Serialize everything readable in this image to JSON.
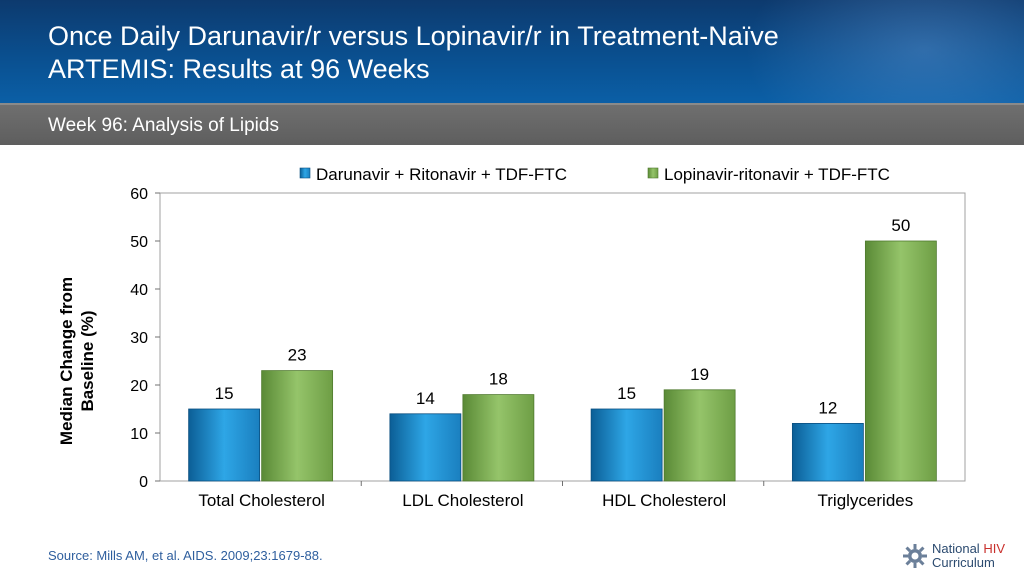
{
  "header": {
    "title_line1": "Once Daily Darunavir/r versus Lopinavir/r in Treatment-Naïve",
    "title_line2": "ARTEMIS: Results at 96 Weeks",
    "subtitle": "Week 96: Analysis of Lipids"
  },
  "chart_data": {
    "type": "bar",
    "title": "",
    "ylabel": "Median Change from Baseline (%)",
    "xlabel": "",
    "categories": [
      "Total Cholesterol",
      "LDL Cholesterol",
      "HDL Cholesterol",
      "Triglycerides"
    ],
    "series": [
      {
        "name": "Darunavir + Ritonavir + TDF-FTC",
        "values": [
          15,
          14,
          15,
          12
        ],
        "color": "#1f8fd1"
      },
      {
        "name": "Lopinavir-ritonavir + TDF-FTC",
        "values": [
          23,
          18,
          19,
          50
        ],
        "color": "#7fae52"
      }
    ],
    "ylim": [
      0,
      60
    ],
    "yticks": [
      "0",
      "10",
      "20",
      "30",
      "40",
      "50",
      "60"
    ],
    "legend": "top",
    "grid": false
  },
  "footer": {
    "source": "Source: Mills AM, et al. AIDS. 2009;23:1679-88.",
    "logo_line1": "National ",
    "logo_hiv": "HIV",
    "logo_line2": "Curriculum"
  }
}
